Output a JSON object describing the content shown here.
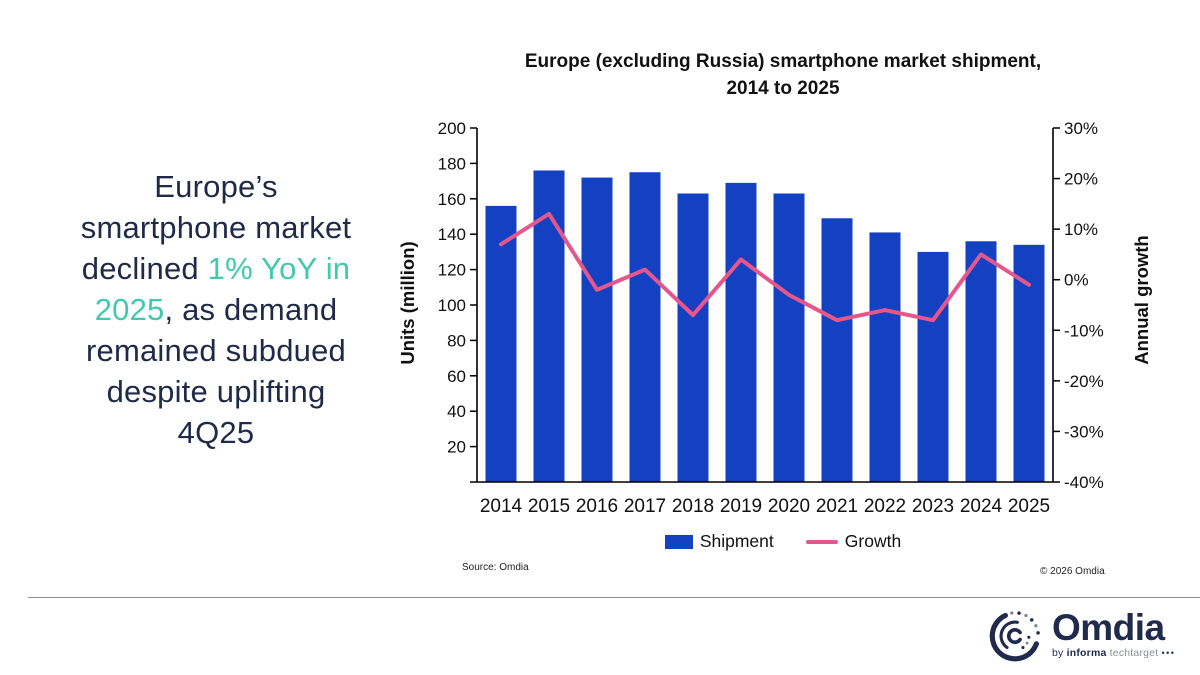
{
  "colors": {
    "navy": "#1e2a47",
    "teal": "#41c9ae",
    "bar_blue": "#1341c1",
    "line_pink": "#e5578c",
    "logo_navy": "#1f2a4d",
    "techtarget_gray": "#8b909a"
  },
  "headline": {
    "full_text": "Europe’s smartphone market declined 1% YoY in 2025, as demand remained subdued despite uplifting 4Q25",
    "lines": [
      {
        "parts": [
          {
            "text": "Europe’s",
            "color": "navy"
          }
        ]
      },
      {
        "parts": [
          {
            "text": "smartphone market",
            "color": "navy"
          }
        ]
      },
      {
        "parts": [
          {
            "text": "declined ",
            "color": "navy"
          },
          {
            "text": "1% YoY in",
            "color": "teal"
          }
        ]
      },
      {
        "parts": [
          {
            "text": "2025",
            "color": "teal"
          },
          {
            "text": ", as demand",
            "color": "navy"
          }
        ]
      },
      {
        "parts": [
          {
            "text": "remained subdued",
            "color": "navy"
          }
        ]
      },
      {
        "parts": [
          {
            "text": "despite uplifting",
            "color": "navy"
          }
        ]
      },
      {
        "parts": [
          {
            "text": "4Q25",
            "color": "navy"
          }
        ]
      }
    ]
  },
  "chart_data": {
    "type": "bar+line",
    "title": "Europe (excluding Russia) smartphone market shipment, 2014 to 2025",
    "title_lines": [
      "Europe (excluding Russia) smartphone market shipment,",
      "2014 to 2025"
    ],
    "categories": [
      "2014",
      "2015",
      "2016",
      "2017",
      "2018",
      "2019",
      "2020",
      "2021",
      "2022",
      "2023",
      "2024",
      "2025"
    ],
    "series": [
      {
        "name": "Shipment",
        "type": "bar",
        "axis": "left",
        "color": "#1341c1",
        "values": [
          156,
          176,
          172,
          175,
          163,
          169,
          163,
          149,
          141,
          130,
          136,
          134
        ]
      },
      {
        "name": "Growth",
        "type": "line",
        "axis": "right",
        "color": "#e5578c",
        "values": [
          7,
          13,
          -2,
          2,
          -7,
          4,
          -3,
          -8,
          -6,
          -8,
          5,
          -1
        ]
      }
    ],
    "left_axis": {
      "label": "Units (million)",
      "min": 0,
      "max": 200,
      "tick_step": 20,
      "first_labeled_tick": 20
    },
    "right_axis": {
      "label": "Annual growth",
      "min": -40,
      "max": 30,
      "tick_step": 10,
      "unit": "%"
    },
    "legend": {
      "position": "bottom",
      "entries": [
        "Shipment",
        "Growth"
      ]
    },
    "grid": false
  },
  "footer": {
    "source": "Source: Omdia",
    "copyright": "© 2026 Omdia"
  },
  "logo": {
    "wordmark": "Omdia",
    "byline_by": "by",
    "byline_informa": "informa",
    "byline_techtarget": "techtarget",
    "byline_dots": "•••"
  }
}
